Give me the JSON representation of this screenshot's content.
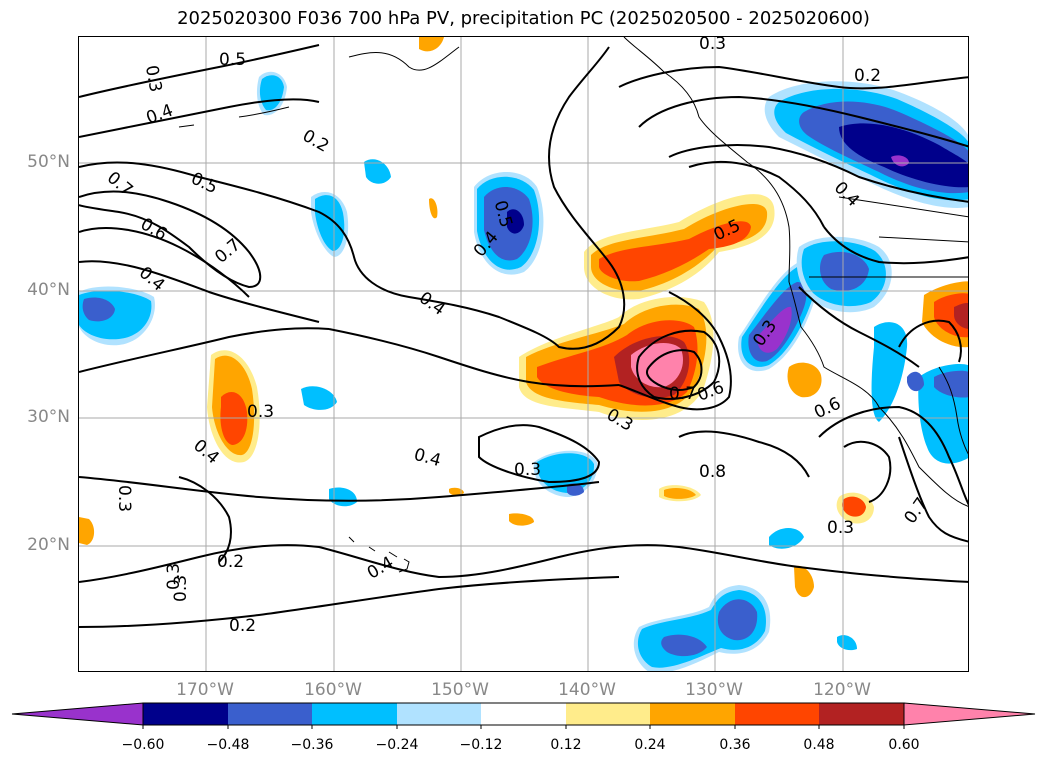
{
  "title": "2025020300 F036 700 hPa PV, precipitation PC (2025020500 - 2025020600)",
  "lat_labels": [
    "50°N",
    "40°N",
    "30°N",
    "20°N"
  ],
  "lon_labels": [
    "170°W",
    "160°W",
    "150°W",
    "140°W",
    "130°W",
    "120°W"
  ],
  "contour_labels": [
    "0.5",
    "0.3",
    "0.4",
    "0.2",
    "0.5",
    "0.7",
    "0.6",
    "0.7",
    "0.4",
    "0.3",
    "0.4",
    "0.3",
    "0.3",
    "0.2",
    "0.3",
    "0.2",
    "0.4",
    "0.4",
    "0.3",
    "0.4",
    "0.5",
    "0.4",
    "0.7",
    "0.6",
    "0.3",
    "0.5",
    "0.8",
    "0.3",
    "0.6",
    "0.2",
    "0.4",
    "0.3",
    "0.3",
    "0.7"
  ],
  "colorbar": {
    "ticks": [
      "−0.60",
      "−0.48",
      "−0.36",
      "−0.24",
      "−0.12",
      "0.12",
      "0.24",
      "0.36",
      "0.48",
      "0.60"
    ],
    "colors": [
      "#9932cc",
      "#00008b",
      "#3a5fcd",
      "#00bfff",
      "#b0e2ff",
      "#ffffff",
      "#ffec8b",
      "#ffa500",
      "#ff4500",
      "#b22222",
      "#ff82ab"
    ]
  }
}
